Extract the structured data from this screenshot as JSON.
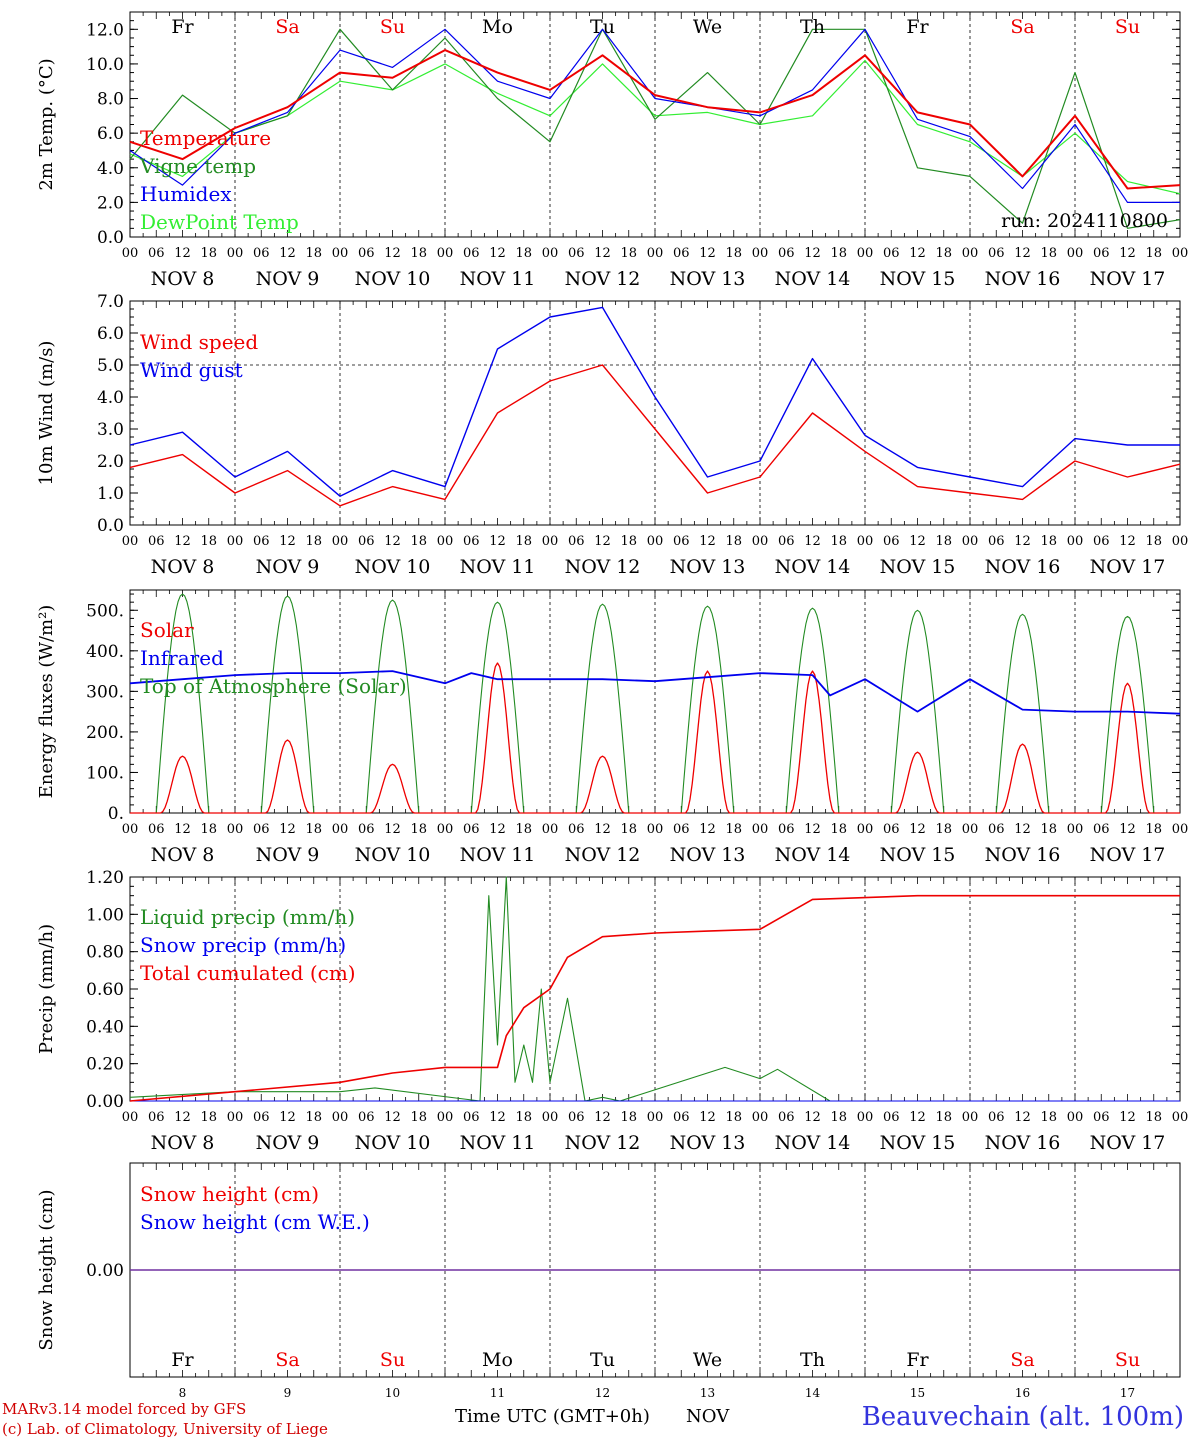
{
  "colors": {
    "red": "#ee0000",
    "blue": "#0000ee",
    "dark_green": "#228b22",
    "light_green": "#33ee33",
    "purple": "#7030a0",
    "weekend": "#ee0000",
    "weekday": "#000000",
    "station": "#3333dd"
  },
  "footer": {
    "model": "MARv3.14 model forced by GFS",
    "credit": "(c) Lab. of Climatology, University of Liege",
    "axis_title": "Time UTC (GMT+0h)",
    "month": "NOV",
    "station": "Beauvechain (alt. 100m)"
  },
  "days": [
    {
      "short": "Fr",
      "num": "8",
      "label": "NOV  8",
      "weekend": false
    },
    {
      "short": "Sa",
      "num": "9",
      "label": "NOV  9",
      "weekend": true
    },
    {
      "short": "Su",
      "num": "10",
      "label": "NOV 10",
      "weekend": true
    },
    {
      "short": "Mo",
      "num": "11",
      "label": "NOV 11",
      "weekend": false
    },
    {
      "short": "Tu",
      "num": "12",
      "label": "NOV 12",
      "weekend": false
    },
    {
      "short": "We",
      "num": "13",
      "label": "NOV 13",
      "weekend": false
    },
    {
      "short": "Th",
      "num": "14",
      "label": "NOV 14",
      "weekend": false
    },
    {
      "short": "Fr",
      "num": "15",
      "label": "NOV 15",
      "weekend": false
    },
    {
      "short": "Sa",
      "num": "16",
      "label": "NOV 16",
      "weekend": true
    },
    {
      "short": "Su",
      "num": "17",
      "label": "NOV 17",
      "weekend": true
    }
  ],
  "hour_ticks": [
    "00",
    "06",
    "12",
    "18"
  ],
  "hour_tick_end": "00",
  "chart_data": [
    {
      "type": "line",
      "ylabel": "2m Temp. (°C)",
      "ylim": [
        0,
        13
      ],
      "yticks": [
        "0.0",
        "2.0",
        "4.0",
        "6.0",
        "8.0",
        "10.0",
        "12.0"
      ],
      "annotation": "run: 2024110800",
      "x": [
        0,
        12,
        24,
        36,
        48,
        60,
        72,
        84,
        96,
        108,
        120,
        132,
        144,
        156,
        168,
        180,
        192,
        204,
        216,
        228,
        240
      ],
      "series": [
        {
          "name": "Temperature",
          "color": "red",
          "values": [
            5.5,
            4.5,
            6.3,
            7.5,
            9.5,
            9.2,
            10.8,
            9.5,
            8.5,
            10.5,
            8.2,
            7.5,
            7.2,
            8.2,
            10.5,
            7.2,
            6.5,
            3.5,
            7.0,
            2.8,
            3.0
          ]
        },
        {
          "name": "Vigne temp",
          "color": "dark_green",
          "values": [
            4.5,
            8.2,
            6.0,
            7.0,
            12.0,
            8.5,
            11.5,
            8.0,
            5.5,
            12.0,
            6.8,
            9.5,
            6.5,
            12.0,
            12.0,
            4.0,
            3.5,
            0.8,
            9.5,
            0.5,
            1.0
          ]
        },
        {
          "name": "Humidex",
          "color": "blue",
          "values": [
            5.0,
            3.0,
            6.0,
            7.2,
            10.8,
            9.8,
            12.0,
            9.0,
            8.0,
            12.0,
            8.0,
            7.5,
            7.0,
            8.5,
            12.0,
            6.8,
            5.8,
            2.8,
            6.5,
            2.0,
            2.0
          ]
        },
        {
          "name": "DewPoint Temp",
          "color": "light_green",
          "values": [
            4.8,
            3.5,
            6.0,
            7.0,
            9.0,
            8.5,
            10.0,
            8.3,
            7.0,
            10.0,
            7.0,
            7.2,
            6.5,
            7.0,
            10.2,
            6.5,
            5.5,
            3.5,
            6.0,
            3.2,
            2.5
          ]
        }
      ]
    },
    {
      "type": "line",
      "ylabel": "10m Wind (m/s)",
      "ylim": [
        0,
        7
      ],
      "yticks": [
        "0.0",
        "1.0",
        "2.0",
        "3.0",
        "4.0",
        "5.0",
        "6.0",
        "7.0"
      ],
      "dashed_y": 5,
      "x": [
        0,
        12,
        24,
        36,
        48,
        60,
        72,
        84,
        96,
        108,
        120,
        132,
        144,
        156,
        168,
        180,
        192,
        204,
        216,
        228,
        240
      ],
      "series": [
        {
          "name": "Wind speed",
          "color": "red",
          "values": [
            1.8,
            2.2,
            1.0,
            1.7,
            0.6,
            1.2,
            0.8,
            3.5,
            4.5,
            5.0,
            3.0,
            1.0,
            1.5,
            3.5,
            2.3,
            1.2,
            1.0,
            0.8,
            2.0,
            1.5,
            1.9
          ]
        },
        {
          "name": "Wind gust",
          "color": "blue",
          "values": [
            2.5,
            2.9,
            1.5,
            2.3,
            0.9,
            1.7,
            1.2,
            5.5,
            6.5,
            6.8,
            4.0,
            1.5,
            2.0,
            5.2,
            2.8,
            1.8,
            1.5,
            1.2,
            2.7,
            2.5,
            2.5
          ]
        }
      ]
    },
    {
      "type": "line",
      "ylabel": "Energy fluxes (W/m²)",
      "ylim": [
        0,
        550
      ],
      "yticks": [
        "0.",
        "100.",
        "200.",
        "300.",
        "400.",
        "500."
      ],
      "series": [
        {
          "name": "Solar",
          "color": "red",
          "peaks": [
            140,
            180,
            120,
            370,
            140,
            350,
            350,
            150,
            170,
            320
          ]
        },
        {
          "name": "Infrared",
          "color": "blue",
          "x": [
            0,
            12,
            24,
            36,
            48,
            60,
            72,
            78,
            80,
            84,
            96,
            108,
            120,
            132,
            144,
            156,
            160,
            168,
            180,
            192,
            204,
            216,
            228,
            240
          ],
          "values": [
            320,
            330,
            340,
            345,
            345,
            350,
            320,
            345,
            340,
            330,
            330,
            330,
            325,
            335,
            345,
            340,
            290,
            330,
            250,
            330,
            255,
            250,
            250,
            245
          ]
        },
        {
          "name": "Top of Atmosphere (Solar)",
          "color": "dark_green",
          "peaks": [
            540,
            535,
            525,
            520,
            515,
            510,
            505,
            500,
            490,
            485
          ]
        }
      ]
    },
    {
      "type": "line",
      "ylabel": "Precip (mm/h)",
      "ylim": [
        0,
        1.2
      ],
      "yticks": [
        "0.00",
        "0.20",
        "0.40",
        "0.60",
        "0.80",
        "1.00",
        "1.20"
      ],
      "series": [
        {
          "name": "Liquid precip (mm/h)",
          "color": "dark_green",
          "x": [
            0,
            24,
            48,
            56,
            80,
            82,
            84,
            86,
            88,
            90,
            92,
            94,
            96,
            100,
            104,
            108,
            112,
            136,
            144,
            148,
            160,
            240
          ],
          "values": [
            0.02,
            0.05,
            0.05,
            0.07,
            0.0,
            1.1,
            0.3,
            1.2,
            0.1,
            0.3,
            0.1,
            0.6,
            0.1,
            0.55,
            0.0,
            0.02,
            0.0,
            0.18,
            0.12,
            0.17,
            0.0,
            0.0
          ]
        },
        {
          "name": "Snow precip (mm/h)",
          "color": "blue",
          "x": [
            0,
            240
          ],
          "values": [
            0.0,
            0.0
          ]
        },
        {
          "name": "Total cumulated (cm)",
          "color": "red",
          "x": [
            0,
            24,
            48,
            60,
            72,
            84,
            86,
            90,
            96,
            100,
            108,
            120,
            132,
            144,
            150,
            156,
            180,
            240
          ],
          "values": [
            0.0,
            0.05,
            0.1,
            0.15,
            0.18,
            0.18,
            0.35,
            0.5,
            0.6,
            0.77,
            0.88,
            0.9,
            0.91,
            0.92,
            1.0,
            1.08,
            1.1,
            1.1
          ]
        }
      ]
    },
    {
      "type": "line",
      "ylabel": "Snow height (cm)",
      "ylim": [
        -1,
        1
      ],
      "yticks": [
        "0.00"
      ],
      "series": [
        {
          "name": "Snow height (cm)",
          "color": "red",
          "x": [
            0,
            240
          ],
          "values": [
            0,
            0
          ]
        },
        {
          "name": "Snow height (cm W.E.)",
          "color": "blue",
          "x": [
            0,
            240
          ],
          "values": [
            0,
            0
          ]
        }
      ]
    }
  ]
}
